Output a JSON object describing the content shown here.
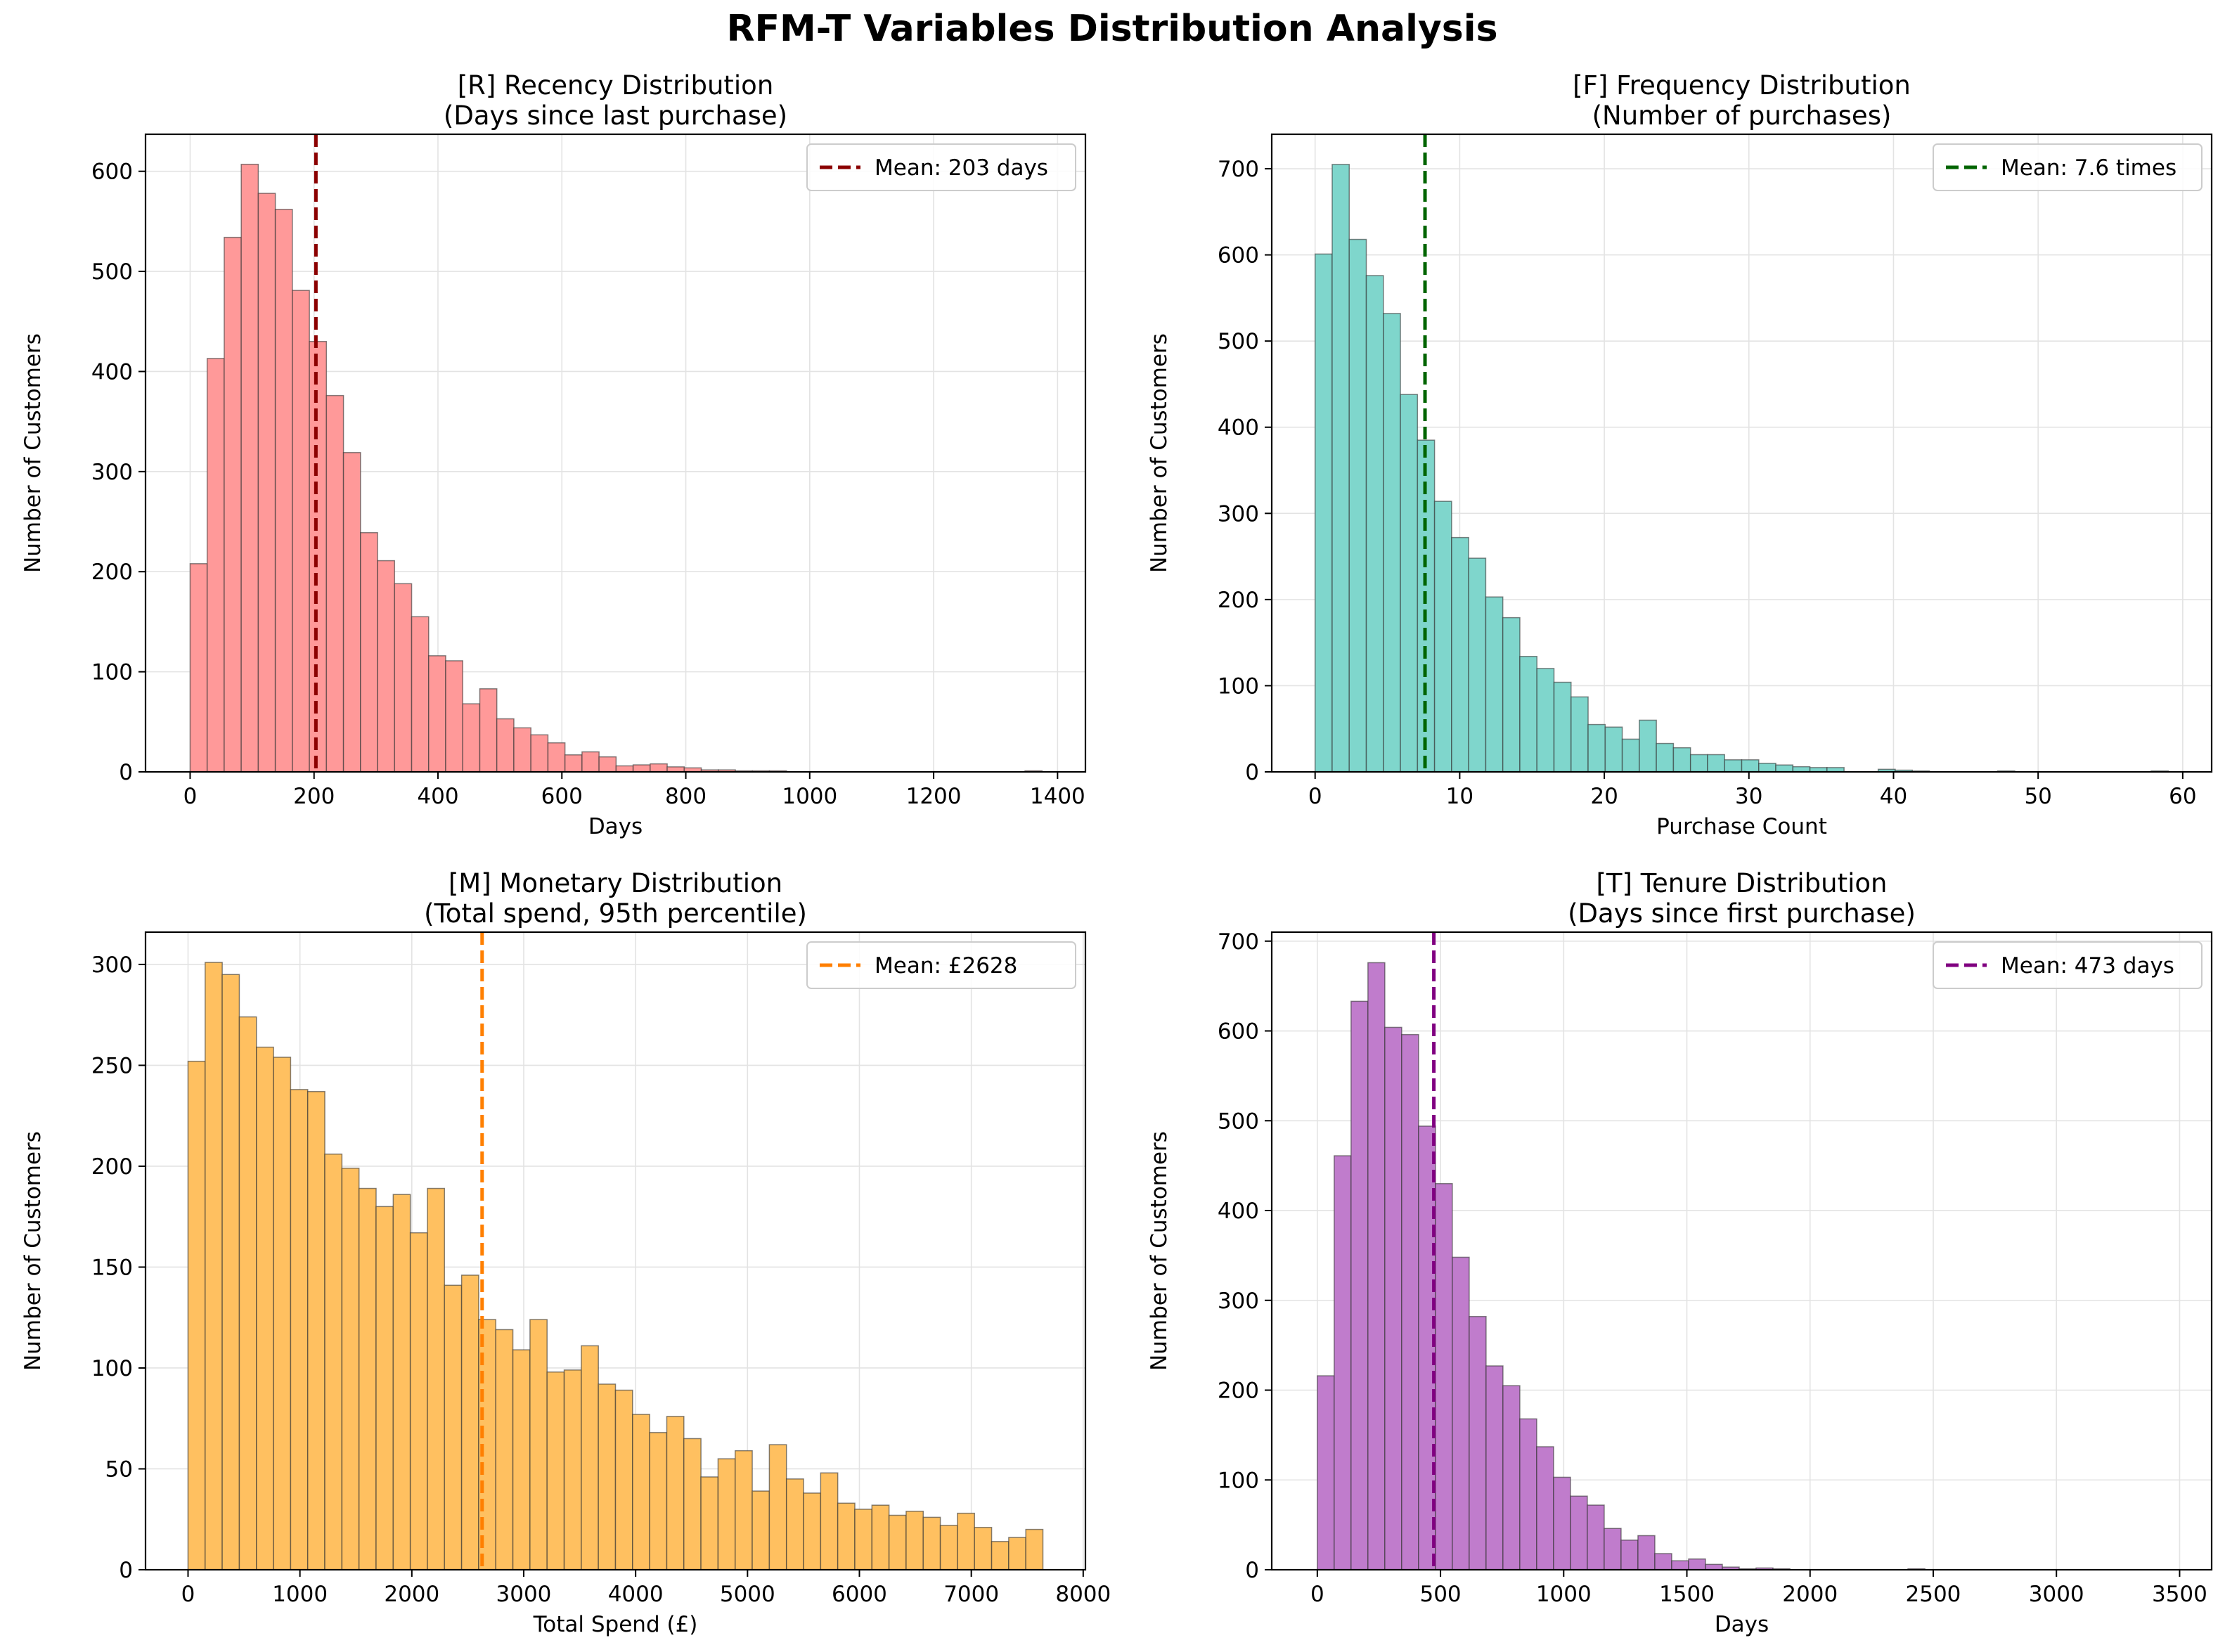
{
  "figure": {
    "suptitle": "RFM-T Variables Distribution Analysis"
  },
  "chart_data": [
    {
      "type": "bar",
      "title": "[R] Recency Distribution",
      "subtitle": "(Days since last purchase)",
      "xlabel": "Days",
      "ylabel": "Number of Customers",
      "xlim": [
        -72,
        1445
      ],
      "ylim": [
        0,
        637
      ],
      "xticks": [
        0,
        200,
        400,
        600,
        800,
        1000,
        1200,
        1400
      ],
      "yticks": [
        0,
        100,
        200,
        300,
        400,
        500,
        600
      ],
      "grid": true,
      "legend_position": "top-right",
      "bar_color": "#ff9999",
      "bin_start": 0,
      "bin_width": 27.5,
      "values": [
        208,
        413,
        534,
        607,
        578,
        562,
        481,
        430,
        376,
        319,
        239,
        211,
        188,
        155,
        116,
        111,
        68,
        83,
        53,
        44,
        37,
        29,
        17,
        20,
        15,
        6,
        7,
        8,
        5,
        4,
        2,
        2,
        1,
        1,
        1,
        0,
        0,
        0,
        0,
        0,
        0,
        0,
        0,
        0,
        0,
        0,
        0,
        0,
        0,
        1
      ],
      "reference_line": {
        "value": 203,
        "label": "Mean: 203 days",
        "color": "#8b0000"
      }
    },
    {
      "type": "bar",
      "title": "[F] Frequency Distribution",
      "subtitle": "(Number of purchases)",
      "xlabel": "Purchase Count",
      "ylabel": "Number of Customers",
      "xlim": [
        -3,
        62
      ],
      "ylim": [
        0,
        740
      ],
      "xticks": [
        0,
        10,
        20,
        30,
        40,
        50,
        60
      ],
      "yticks": [
        0,
        100,
        200,
        300,
        400,
        500,
        600,
        700
      ],
      "grid": true,
      "legend_position": "top-right",
      "bar_color": "#7fd6cc",
      "bin_start": 0,
      "bin_width": 1.18,
      "values": [
        601,
        705,
        618,
        576,
        532,
        438,
        385,
        314,
        272,
        248,
        203,
        179,
        134,
        120,
        104,
        87,
        55,
        52,
        38,
        60,
        33,
        28,
        20,
        20,
        14,
        14,
        10,
        8,
        6,
        5,
        5,
        0,
        0,
        3,
        2,
        1,
        0,
        0,
        0,
        0,
        1,
        0,
        0,
        0,
        0,
        0,
        0,
        0,
        0,
        1
      ],
      "reference_line": {
        "value": 7.6,
        "label": "Mean: 7.6 times",
        "color": "#006400"
      }
    },
    {
      "type": "bar",
      "title": "[M] Monetary Distribution",
      "subtitle": "(Total spend, 95th percentile)",
      "xlabel": "Total Spend (£)",
      "ylabel": "Number of Customers",
      "xlim": [
        -380,
        8020
      ],
      "ylim": [
        0,
        316
      ],
      "xticks": [
        0,
        1000,
        2000,
        3000,
        4000,
        5000,
        6000,
        7000,
        8000
      ],
      "yticks": [
        0,
        50,
        100,
        150,
        200,
        250,
        300
      ],
      "grid": true,
      "legend_position": "top-right",
      "bar_color": "#ffc060",
      "bin_start": 0,
      "bin_width": 152.8,
      "values": [
        252,
        301,
        295,
        274,
        259,
        254,
        238,
        237,
        206,
        199,
        189,
        180,
        186,
        167,
        189,
        141,
        146,
        124,
        119,
        109,
        124,
        98,
        99,
        111,
        92,
        89,
        77,
        68,
        76,
        65,
        46,
        55,
        59,
        39,
        62,
        45,
        38,
        48,
        33,
        30,
        32,
        27,
        29,
        26,
        22,
        28,
        21,
        14,
        16,
        20
      ],
      "reference_line": {
        "value": 2628,
        "label": "Mean: £2628",
        "color": "#ff7f00"
      }
    },
    {
      "type": "bar",
      "title": "[T] Tenure Distribution",
      "subtitle": "(Days since first purchase)",
      "xlabel": "Days",
      "ylabel": "Number of Customers",
      "xlim": [
        -185,
        3630
      ],
      "ylim": [
        0,
        710
      ],
      "xticks": [
        0,
        500,
        1000,
        1500,
        2000,
        2500,
        3000,
        3500
      ],
      "yticks": [
        0,
        100,
        200,
        300,
        400,
        500,
        600,
        700
      ],
      "grid": true,
      "legend_position": "top-right",
      "bar_color": "#c07ccc",
      "bin_start": 0,
      "bin_width": 68.5,
      "values": [
        216,
        461,
        633,
        676,
        604,
        596,
        494,
        430,
        348,
        282,
        227,
        205,
        168,
        137,
        103,
        82,
        72,
        46,
        33,
        38,
        18,
        10,
        12,
        6,
        3,
        1,
        2,
        1,
        0,
        0,
        0,
        0,
        0,
        0,
        0,
        1,
        0,
        0,
        0,
        0,
        0,
        0,
        0,
        0,
        0,
        0,
        0,
        0,
        0,
        0
      ],
      "reference_line": {
        "value": 473,
        "label": "Mean: 473 days",
        "color": "#800080"
      }
    }
  ]
}
